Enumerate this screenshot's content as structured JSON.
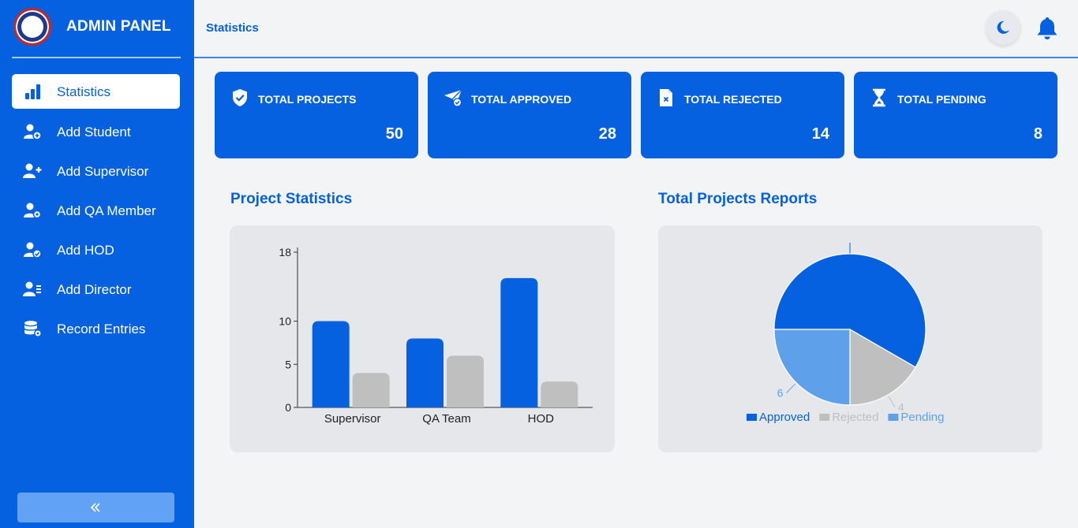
{
  "sidebar": {
    "brand_title": "ADMIN PANEL",
    "items": [
      {
        "label": "Statistics",
        "icon": "bar-chart-icon",
        "active": true
      },
      {
        "label": "Add Student",
        "icon": "user-add-icon",
        "active": false
      },
      {
        "label": "Add Supervisor",
        "icon": "user-plus-icon",
        "active": false
      },
      {
        "label": "Add QA Member",
        "icon": "user-gear-icon",
        "active": false
      },
      {
        "label": "Add HOD",
        "icon": "user-check-icon",
        "active": false
      },
      {
        "label": "Add Director",
        "icon": "user-list-icon",
        "active": false
      },
      {
        "label": "Record Entries",
        "icon": "database-gear-icon",
        "active": false
      }
    ],
    "collapse_icon": "double-chevron-left-icon"
  },
  "header": {
    "title": "Statistics",
    "theme_icon": "moon-icon",
    "notification_icon": "bell-icon"
  },
  "cards": [
    {
      "label": "TOTAL PROJECTS",
      "value": "50",
      "icon": "shield-check-icon"
    },
    {
      "label": "TOTAL APPROVED",
      "value": "28",
      "icon": "paper-plane-check-icon"
    },
    {
      "label": "TOTAL REJECTED",
      "value": "14",
      "icon": "file-x-icon"
    },
    {
      "label": "TOTAL PENDING",
      "value": "8",
      "icon": "hourglass-icon"
    }
  ],
  "sections": {
    "project_statistics": "Project Statistics",
    "total_reports": "Total Projects Reports"
  },
  "colors": {
    "primary": "#0561e0",
    "gray_bar": "#bfbfbf",
    "pending": "#5ea0ea"
  },
  "chart_data": [
    {
      "type": "bar",
      "categories": [
        "Supervisor",
        "QA Team",
        "HOD"
      ],
      "series": [
        {
          "values": [
            10,
            8,
            15
          ],
          "color": "#0561e0"
        },
        {
          "values": [
            4,
            6,
            3
          ],
          "color": "#bfbfbf"
        }
      ],
      "ylim": [
        0,
        18
      ],
      "yticks": [
        "0",
        "5",
        "10",
        "18"
      ]
    },
    {
      "type": "pie",
      "slices": [
        {
          "label": "Approved",
          "value": 14,
          "color": "#0561e0",
          "value_label": ""
        },
        {
          "label": "Rejected",
          "value": 4,
          "color": "#bfbfbf",
          "value_label": "4"
        },
        {
          "label": "Pending",
          "value": 6,
          "color": "#5ea0ea",
          "value_label": "6"
        }
      ],
      "legend": "bottom"
    }
  ]
}
